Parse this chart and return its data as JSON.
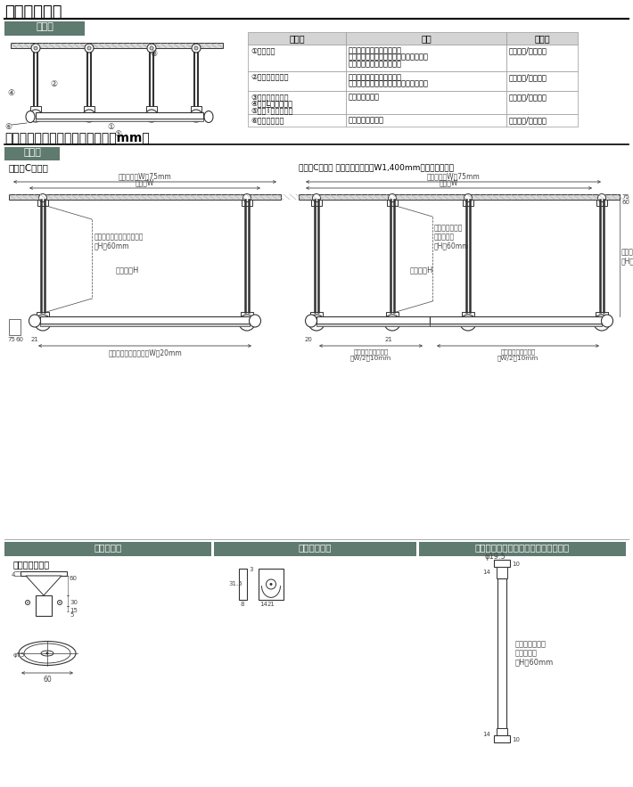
{
  "title_section1": "製品と仕上げ",
  "subtitle1": "天井付",
  "title_section2": "取付寸法図／部品寸法図（単位：mm）",
  "subtitle2": "天井付",
  "table_headers": [
    "部品名",
    "材質",
    "仕上げ"
  ],
  "table_rows": [
    [
      "①本体バー",
      "アルミニウム合金押出形材\n塩化ビニル樹脂皮膜フィルムラッピング\n硬質・軟質塩化ビニル樹脂",
      "ブラック/ホワイト"
    ],
    [
      "②天井吊りポール",
      "アルミニウム合金押出形材\n塩化ビニル樹脂皮膜フィルムラッピング",
      "ブラック/ホワイト"
    ],
    [
      "③天井ブラケット\n④天井Lジョイント\n⑤天井Tジョイント",
      "亜鉛ダイカスト",
      "ブラック/ホワイト"
    ],
    [
      "⑥バーキャップ",
      "硬質ポリエチレン",
      "ブラック/ホワイト"
    ]
  ],
  "diagram_left_title": "天井付Cタイプ",
  "diagram_right_title": "天井付Cタイプ ジョイントあり（W1,400mmを超える場合）",
  "section3_labels": [
    "ブラケット",
    "バーキャップ",
    "天井吊りポール（固定アダプター付）"
  ],
  "bracket_title": "天井ブラケット",
  "bg_color": "#ffffff",
  "header_bg": "#5f7a6e",
  "header_text": "#ffffff",
  "table_header_bg": "#d4d4d4",
  "line_color": "#333333",
  "dim_color": "#444444",
  "hatch_color": "#888888"
}
